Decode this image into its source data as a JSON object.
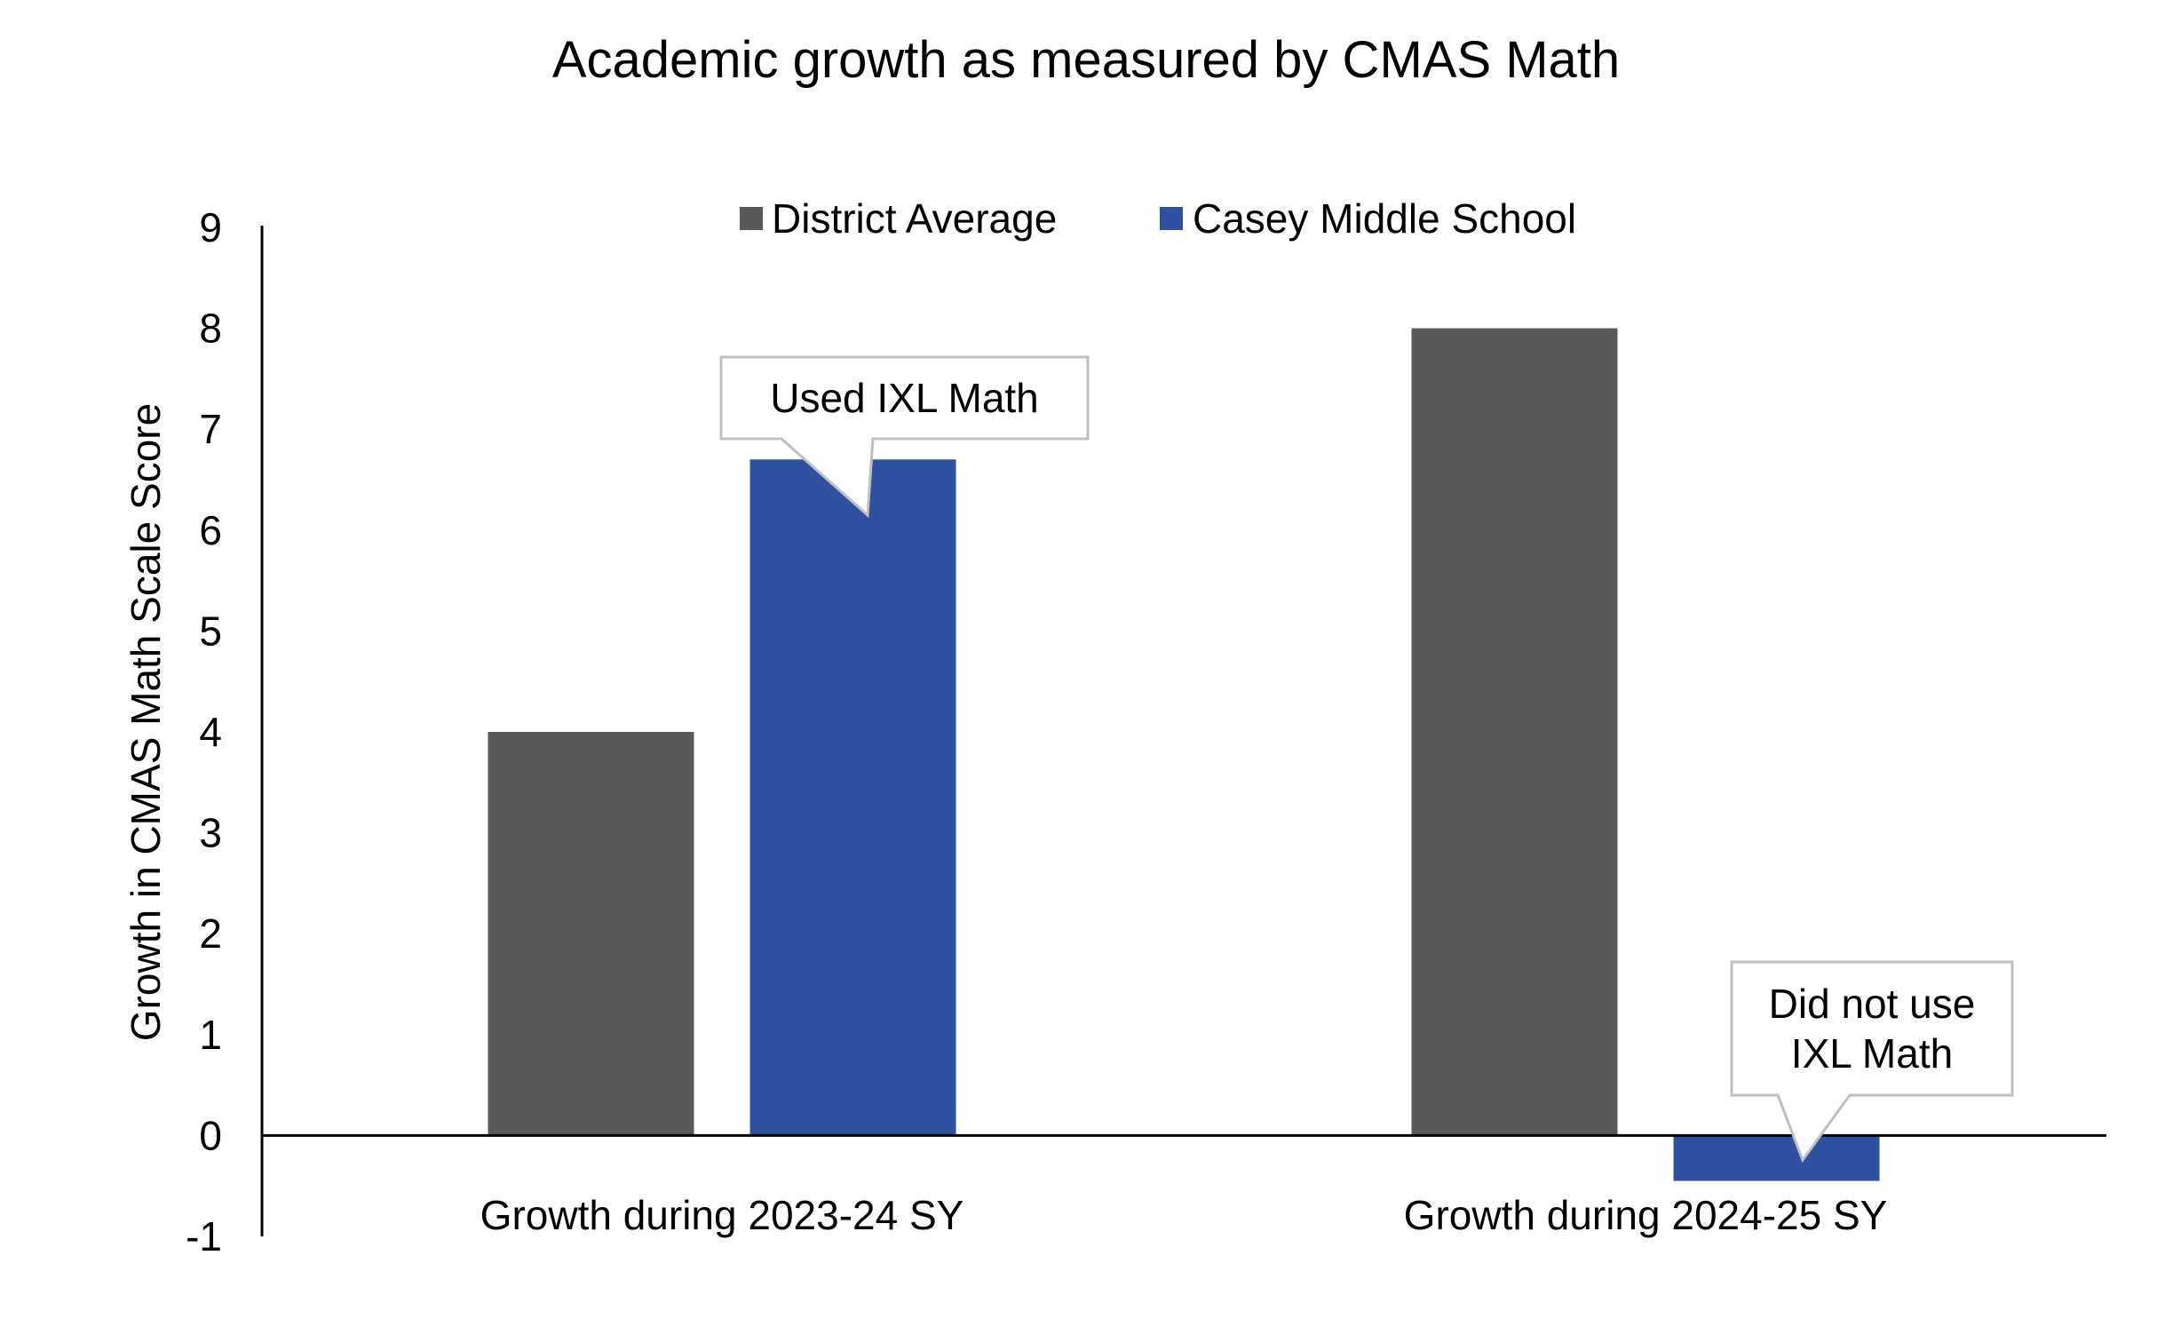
{
  "chart_data": {
    "type": "bar",
    "title": "Academic growth as measured by CMAS Math",
    "ylabel": "Growth in CMAS Math Scale Score",
    "xlabel": "",
    "ylim": [
      -1,
      9
    ],
    "yticks": [
      9,
      8,
      7,
      6,
      5,
      4,
      3,
      2,
      1,
      0,
      -1
    ],
    "categories": [
      "Growth during 2023-24 SY",
      "Growth during 2024-25 SY"
    ],
    "series": [
      {
        "name": "District Average",
        "color": "#595959",
        "values": [
          4,
          8
        ]
      },
      {
        "name": "Casey Middle School",
        "color": "#3050A0",
        "values": [
          6.7,
          -0.45
        ]
      }
    ],
    "legend": {
      "position": "top"
    },
    "grid": false,
    "annotations": [
      {
        "text_lines": [
          "Used IXL Math"
        ],
        "category_index": 0,
        "series_index": 1
      },
      {
        "text_lines": [
          "Did not use",
          "IXL Math"
        ],
        "category_index": 1,
        "series_index": 1
      }
    ]
  }
}
